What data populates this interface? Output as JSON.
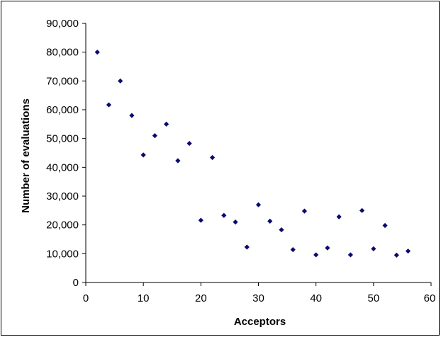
{
  "chart_data": {
    "type": "scatter",
    "title": "",
    "xlabel": "Acceptors",
    "ylabel": "Number of evaluations",
    "xlim": [
      0,
      60
    ],
    "ylim": [
      0,
      90000
    ],
    "x_ticks": [
      0,
      10,
      20,
      30,
      40,
      50,
      60
    ],
    "x_tick_labels": [
      "0",
      "10",
      "20",
      "30",
      "40",
      "50",
      "60"
    ],
    "y_ticks": [
      0,
      10000,
      20000,
      30000,
      40000,
      50000,
      60000,
      70000,
      80000,
      90000
    ],
    "y_tick_labels": [
      "0",
      "10,000",
      "20,000",
      "30,000",
      "40,000",
      "50,000",
      "60,000",
      "70,000",
      "80,000",
      "90,000"
    ],
    "grid": false,
    "legend": "none",
    "marker_color": "#0a0a6e",
    "series": [
      {
        "points": [
          [
            2,
            80000
          ],
          [
            4,
            61700
          ],
          [
            6,
            70000
          ],
          [
            8,
            58000
          ],
          [
            10,
            44300
          ],
          [
            12,
            51000
          ],
          [
            14,
            55000
          ],
          [
            16,
            42300
          ],
          [
            18,
            48300
          ],
          [
            20,
            21600
          ],
          [
            22,
            43400
          ],
          [
            24,
            23300
          ],
          [
            26,
            21000
          ],
          [
            28,
            12300
          ],
          [
            30,
            27000
          ],
          [
            32,
            21300
          ],
          [
            34,
            18300
          ],
          [
            36,
            11400
          ],
          [
            38,
            24800
          ],
          [
            40,
            9600
          ],
          [
            42,
            12000
          ],
          [
            44,
            22800
          ],
          [
            46,
            9600
          ],
          [
            48,
            25000
          ],
          [
            50,
            11700
          ],
          [
            52,
            19800
          ],
          [
            54,
            9500
          ],
          [
            56,
            10900
          ]
        ]
      }
    ]
  }
}
